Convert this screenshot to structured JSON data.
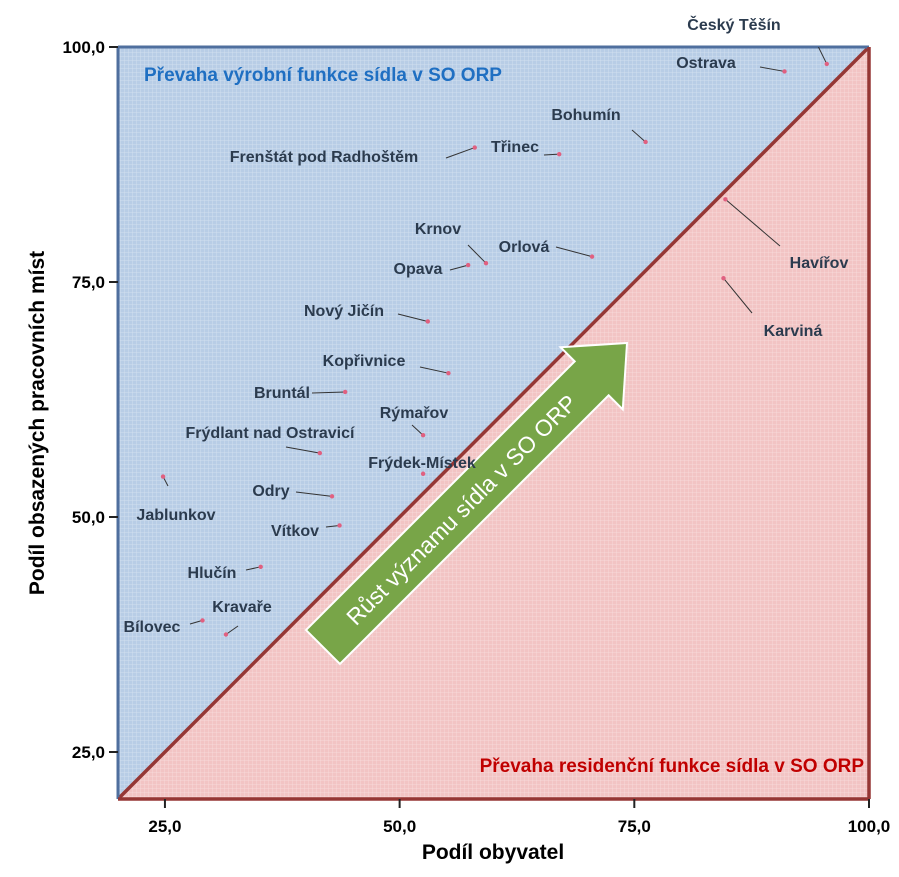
{
  "chart_data": {
    "type": "scatter",
    "xlabel": "Podíl obyvatel",
    "ylabel": "Podíl obsazených pracovních míst",
    "xlim": [
      20,
      100
    ],
    "ylim": [
      20,
      100
    ],
    "x_ticks": [
      25,
      50,
      75,
      100
    ],
    "y_ticks": [
      25,
      50,
      75,
      100
    ],
    "x_tick_labels": [
      "25,0",
      "50,0",
      "75,0",
      "100,0"
    ],
    "y_tick_labels": [
      "25,0",
      "50,0",
      "75,0",
      "100,0"
    ],
    "grid": true,
    "diagonal": true,
    "region_upper_label": "Převaha výrobní funkce sídla v SO ORP",
    "region_lower_label": "Převaha residenční funkce sídla v SO ORP",
    "arrow_label": "Růst významu sídla v SO ORP",
    "colors": {
      "upper_region": "#b8cde6",
      "lower_region": "#f2c4c4",
      "diagonal": "#953735",
      "frame_left": "#4f6f9e",
      "frame_right": "#953735",
      "upper_label": "#1f6fc2",
      "lower_label": "#c00000",
      "arrow": "#78a548",
      "point_label": "#2b3b4e",
      "point": "#e06080"
    },
    "points": [
      {
        "name": "Český Těšín",
        "x": 95.5,
        "y": 98.2
      },
      {
        "name": "Ostrava",
        "x": 91.0,
        "y": 97.4
      },
      {
        "name": "Bohumín",
        "x": 76.2,
        "y": 89.9
      },
      {
        "name": "Třinec",
        "x": 67.0,
        "y": 88.6
      },
      {
        "name": "Frenštát pod Radhoštěm",
        "x": 58.0,
        "y": 89.3
      },
      {
        "name": "Krnov",
        "x": 59.2,
        "y": 77.0
      },
      {
        "name": "Orlová",
        "x": 70.5,
        "y": 77.7
      },
      {
        "name": "Opava",
        "x": 57.3,
        "y": 76.8
      },
      {
        "name": "Havířov",
        "x": 84.7,
        "y": 83.8
      },
      {
        "name": "Karviná",
        "x": 84.5,
        "y": 75.4
      },
      {
        "name": "Nový Jičín",
        "x": 53.0,
        "y": 70.8
      },
      {
        "name": "Kopřivnice",
        "x": 55.2,
        "y": 65.3
      },
      {
        "name": "Bruntál",
        "x": 44.2,
        "y": 63.3
      },
      {
        "name": "Rýmařov",
        "x": 52.5,
        "y": 58.7
      },
      {
        "name": "Frýdlant nad Ostravicí",
        "x": 41.5,
        "y": 56.8
      },
      {
        "name": "Frýdek-Místek",
        "x": 52.5,
        "y": 54.6
      },
      {
        "name": "Jablunkov",
        "x": 24.8,
        "y": 54.3
      },
      {
        "name": "Odry",
        "x": 42.8,
        "y": 52.2
      },
      {
        "name": "Vítkov",
        "x": 43.6,
        "y": 49.1
      },
      {
        "name": "Hlučín",
        "x": 35.2,
        "y": 44.7
      },
      {
        "name": "Bílovec",
        "x": 29.0,
        "y": 39.0
      },
      {
        "name": "Kravaře",
        "x": 31.5,
        "y": 37.5
      }
    ]
  }
}
